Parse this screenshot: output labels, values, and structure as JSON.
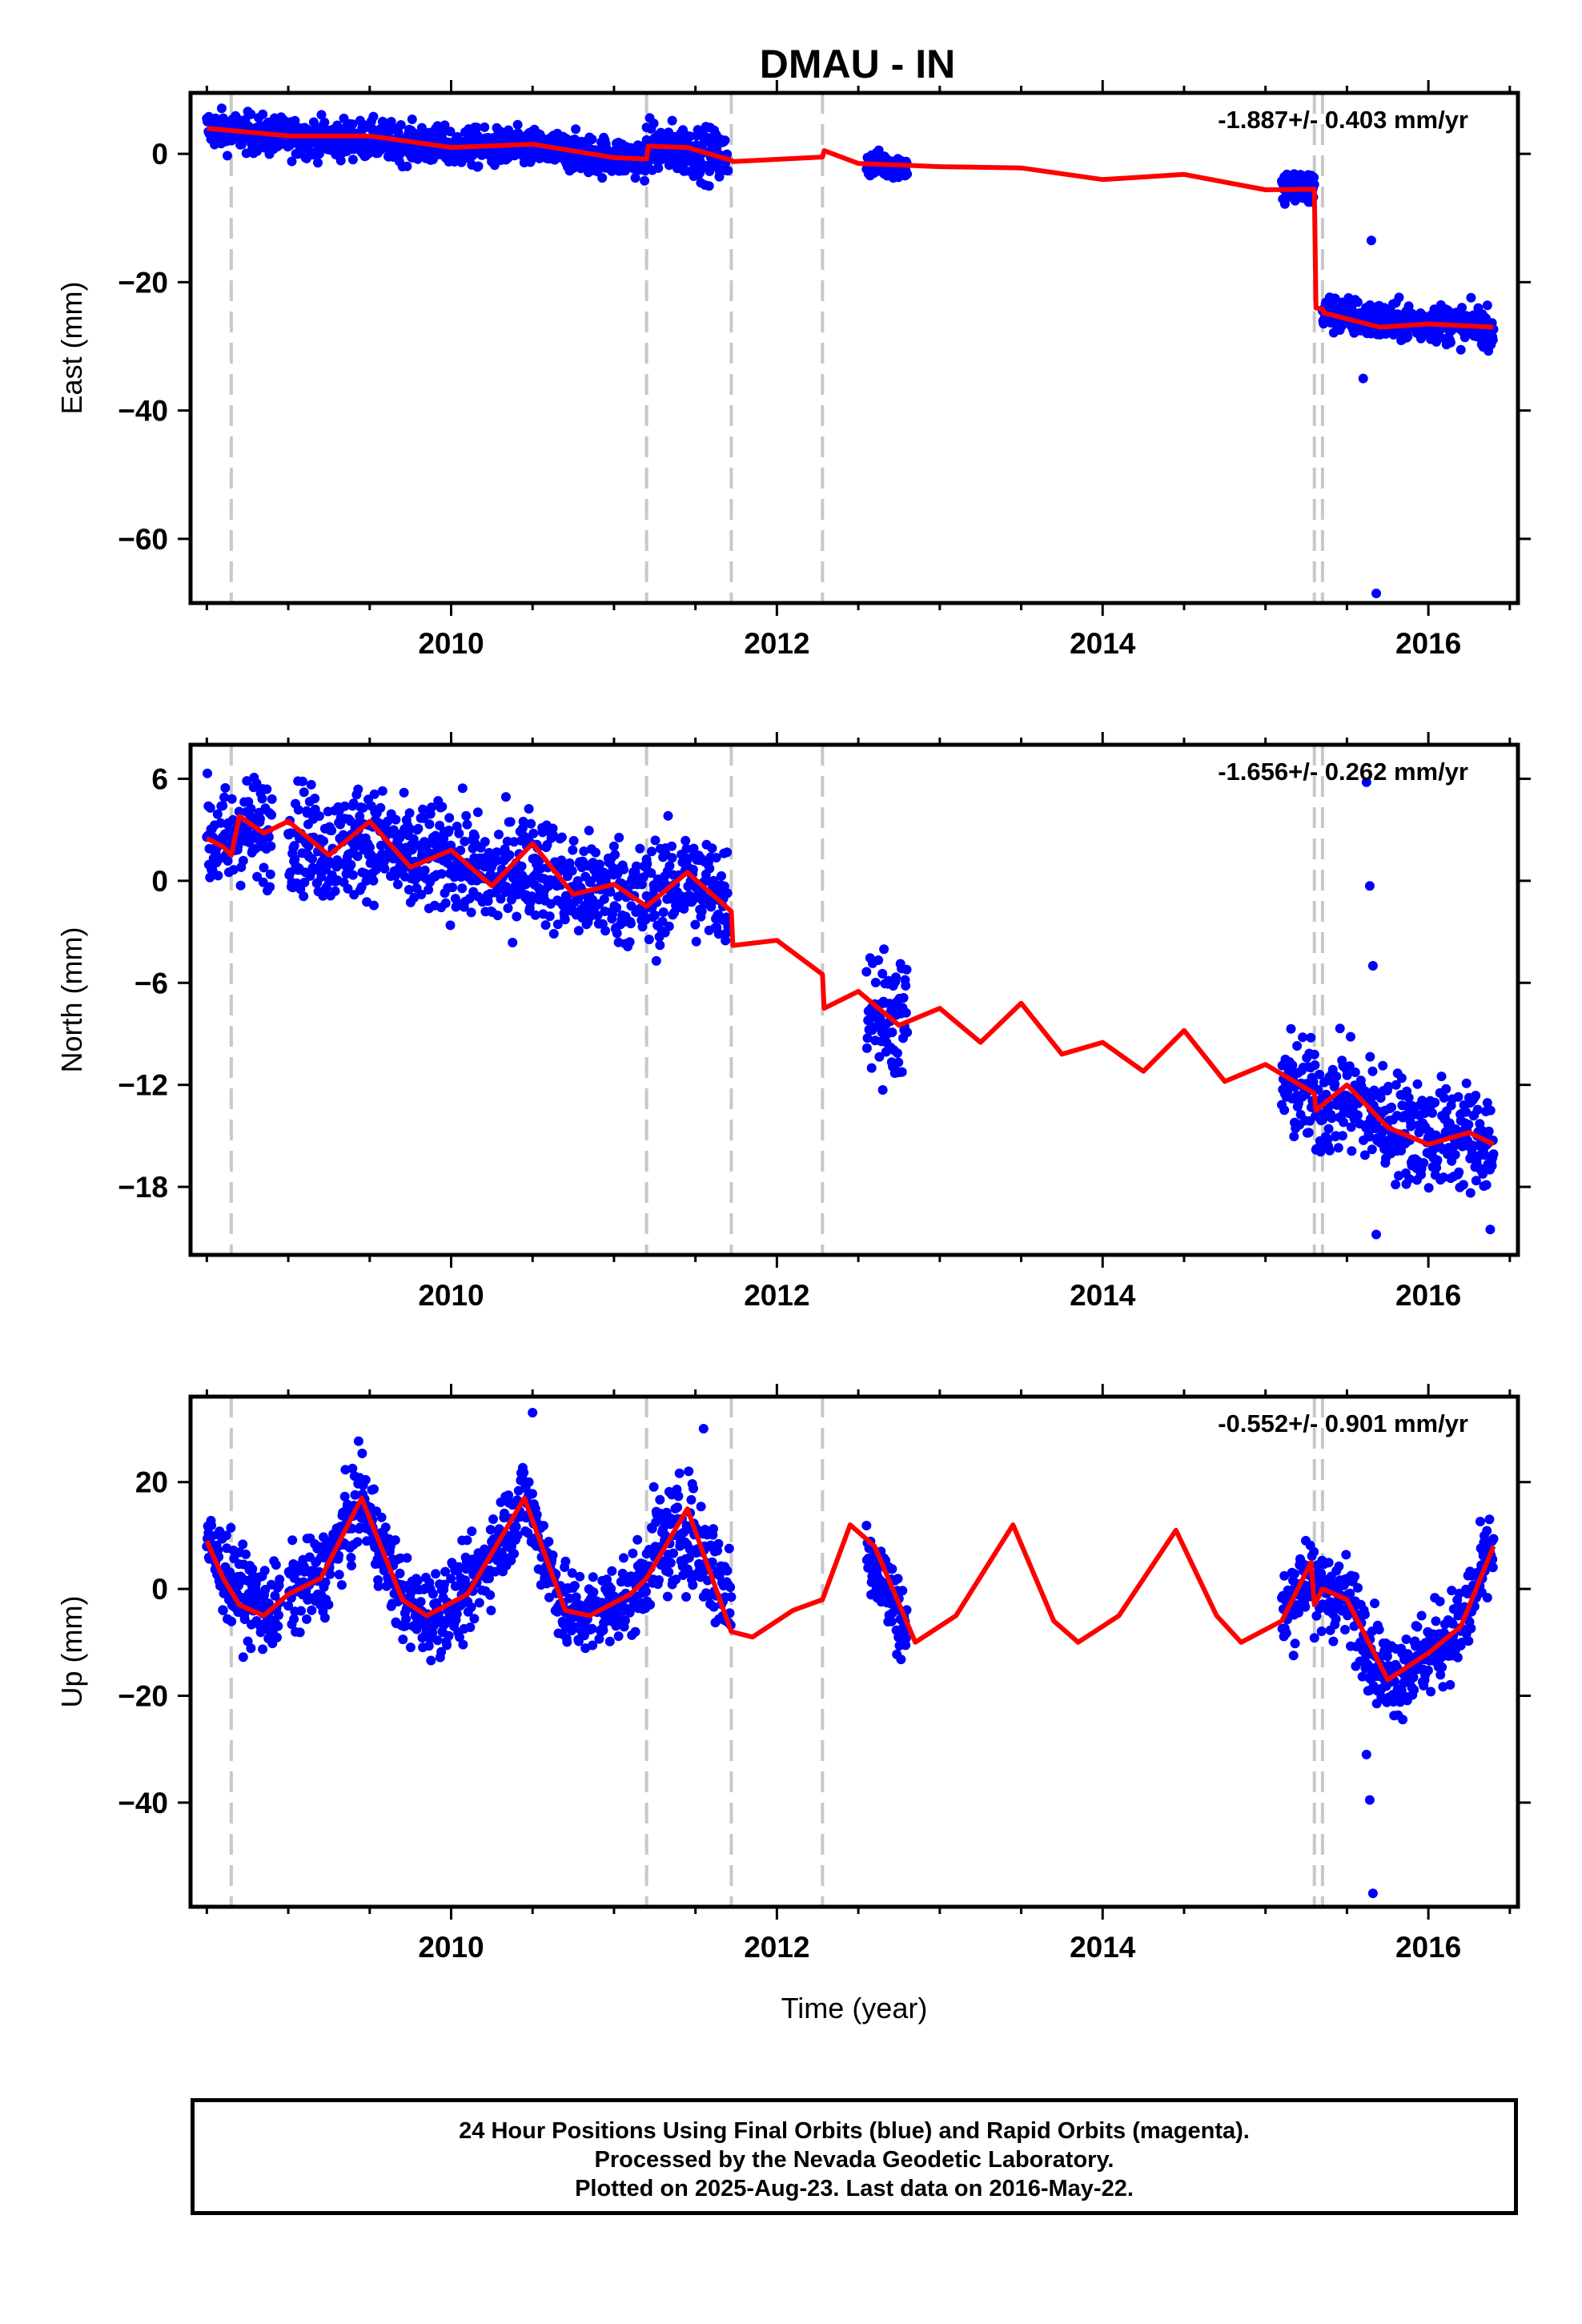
{
  "title": "DMAU - IN",
  "xlabel": "Time (year)",
  "colors": {
    "points": "#0000ff",
    "model": "#ff0000",
    "offsets": "#c8c8c8",
    "frame": "#000000"
  },
  "caption": [
    "24 Hour Positions Using Final Orbits (blue) and Rapid Orbits (magenta).",
    "Processed by the Nevada Geodetic Laboratory.",
    "Plotted on 2025-Aug-23. Last data on 2016-May-22."
  ],
  "chart_data": [
    {
      "type": "scatter",
      "component": "East",
      "ylabel": "East (mm)",
      "xlim": [
        2008.4,
        2016.55
      ],
      "ylim": [
        -70,
        9.5
      ],
      "xticks": [
        2010,
        2012,
        2014,
        2016
      ],
      "yticks": [
        0,
        -20,
        -40,
        -60
      ],
      "rate_label": "-1.887+/- 0.403 mm/yr",
      "offsets": [
        2008.65,
        2011.2,
        2011.72,
        2012.28,
        2015.3,
        2015.35
      ],
      "data_segments": [
        {
          "x": [
            2008.5,
            2008.9
          ],
          "model": [
            4.0,
            2.5
          ],
          "scatter": 1.5
        },
        {
          "x": [
            2008.9,
            2011.2
          ],
          "model": [
            2.5,
            -0.7
          ],
          "scatter": 1.5
        },
        {
          "x": [
            2011.2,
            2011.7
          ],
          "model": [
            1.0,
            -0.5
          ],
          "scatter": 2.0
        },
        {
          "x": [
            2012.55,
            2012.8
          ],
          "model": [
            -1.5,
            -2.0
          ],
          "scatter": 1.0
        },
        {
          "x": [
            2015.1,
            2015.3
          ],
          "model": [
            -5.0,
            -5.5
          ],
          "scatter": 1.5
        },
        {
          "x": [
            2015.35,
            2016.4
          ],
          "model": [
            -24.5,
            -27.0
          ],
          "scatter": 1.5
        }
      ],
      "model": {
        "x": [
          2008.5,
          2009.0,
          2009.5,
          2010.0,
          2010.5,
          2011.0,
          2011.2,
          2011.21,
          2011.45,
          2011.72,
          2011.73,
          2012.28,
          2012.29,
          2012.5,
          2013.0,
          2013.5,
          2014.0,
          2014.5,
          2015.0,
          2015.3,
          2015.31,
          2015.35,
          2015.36,
          2015.7,
          2016.0,
          2016.4
        ],
        "y": [
          4.0,
          2.8,
          2.8,
          1.0,
          1.5,
          -0.6,
          -0.8,
          1.2,
          1.0,
          -1.0,
          -1.2,
          -0.5,
          0.5,
          -1.5,
          -2.0,
          -2.2,
          -4.0,
          -3.2,
          -5.6,
          -5.5,
          -24.0,
          -24.2,
          -24.8,
          -27.0,
          -26.5,
          -27.0
        ]
      },
      "outliers": [
        {
          "x": 2015.65,
          "y": -13.5
        },
        {
          "x": 2015.6,
          "y": -35.0
        },
        {
          "x": 2015.68,
          "y": -68.5
        }
      ]
    },
    {
      "type": "scatter",
      "component": "North",
      "ylabel": "North (mm)",
      "xlim": [
        2008.4,
        2016.55
      ],
      "ylim": [
        -22,
        8
      ],
      "xticks": [
        2010,
        2012,
        2014,
        2016
      ],
      "yticks": [
        6,
        0,
        -6,
        -12,
        -18
      ],
      "rate_label": "-1.656+/- 0.262 mm/yr",
      "offsets": [
        2008.65,
        2011.2,
        2011.72,
        2012.28,
        2015.3,
        2015.35
      ],
      "data_segments": [
        {
          "x": [
            2008.5,
            2008.9
          ],
          "model": [
            2.5,
            2.8
          ],
          "scatter": 1.6
        },
        {
          "x": [
            2009.0,
            2011.2
          ],
          "model": [
            2.5,
            -1.0
          ],
          "scatter": 1.6
        },
        {
          "x": [
            2011.2,
            2011.7
          ],
          "model": [
            -0.5,
            -0.5
          ],
          "scatter": 1.6
        },
        {
          "x": [
            2012.55,
            2012.8
          ],
          "model": [
            -7.0,
            -8.0
          ],
          "scatter": 1.8
        },
        {
          "x": [
            2015.1,
            2016.4
          ],
          "model": [
            -12.5,
            -15.5
          ],
          "scatter": 1.6
        }
      ],
      "model": {
        "x": [
          2008.5,
          2008.6,
          2008.65,
          2008.7,
          2008.85,
          2009.0,
          2009.25,
          2009.5,
          2009.75,
          2010.0,
          2010.25,
          2010.5,
          2010.75,
          2011.0,
          2011.2,
          2011.45,
          2011.72,
          2011.73,
          2012.0,
          2012.28,
          2012.29,
          2012.5,
          2012.75,
          2013.0,
          2013.25,
          2013.5,
          2013.75,
          2014.0,
          2014.25,
          2014.5,
          2014.75,
          2015.0,
          2015.3,
          2015.31,
          2015.5,
          2015.75,
          2016.0,
          2016.25,
          2016.4
        ],
        "y": [
          2.5,
          2.0,
          1.5,
          3.8,
          2.8,
          3.5,
          1.5,
          3.5,
          0.8,
          1.8,
          -0.3,
          2.2,
          -0.8,
          -0.2,
          -1.5,
          0.5,
          -1.8,
          -3.8,
          -3.5,
          -5.5,
          -7.5,
          -6.5,
          -8.5,
          -7.5,
          -9.5,
          -7.2,
          -10.2,
          -9.5,
          -11.2,
          -8.8,
          -11.8,
          -10.8,
          -12.5,
          -13.5,
          -12.0,
          -14.5,
          -15.5,
          -14.8,
          -15.5
        ]
      },
      "outliers": [
        {
          "x": 2015.62,
          "y": 5.8
        },
        {
          "x": 2015.64,
          "y": -0.3
        },
        {
          "x": 2015.66,
          "y": -5.0
        },
        {
          "x": 2015.68,
          "y": -20.8
        },
        {
          "x": 2016.38,
          "y": -20.5
        },
        {
          "x": 2012.65,
          "y": -12.3
        }
      ]
    },
    {
      "type": "scatter",
      "component": "Up",
      "ylabel": "Up (mm)",
      "xlim": [
        2008.4,
        2016.55
      ],
      "ylim": [
        -59.5,
        36
      ],
      "xticks": [
        2010,
        2012,
        2014,
        2016
      ],
      "yticks": [
        20,
        0,
        -20,
        -40
      ],
      "rate_label": "-0.552+/- 0.901 mm/yr",
      "offsets": [
        2008.65,
        2011.2,
        2011.72,
        2012.28,
        2015.3,
        2015.35
      ],
      "data_segments": [
        {
          "x": [
            2008.5,
            2008.95
          ],
          "model": [
            8.0,
            -5.0
          ],
          "scatter": 4.0
        },
        {
          "x": [
            2009.0,
            2011.2
          ],
          "model": [
            0.0,
            0.0
          ],
          "scatter": 4.0,
          "seasonal": true
        },
        {
          "x": [
            2011.2,
            2011.72
          ],
          "model": [
            10.0,
            5.0
          ],
          "scatter": 5.0
        },
        {
          "x": [
            2012.55,
            2012.8
          ],
          "model": [
            5.0,
            -9.0
          ],
          "scatter": 4.0
        },
        {
          "x": [
            2015.1,
            2016.4
          ],
          "model": [
            0.0,
            5.0
          ],
          "scatter": 4.0,
          "seasonal": true
        }
      ],
      "model": {
        "x": [
          2008.5,
          2008.6,
          2008.7,
          2008.85,
          2009.0,
          2009.2,
          2009.45,
          2009.7,
          2009.85,
          2010.1,
          2010.45,
          2010.7,
          2010.85,
          2011.1,
          2011.2,
          2011.45,
          2011.72,
          2011.85,
          2012.1,
          2012.28,
          2012.45,
          2012.6,
          2012.85,
          2013.1,
          2013.45,
          2013.7,
          2013.85,
          2014.1,
          2014.45,
          2014.7,
          2014.85,
          2015.1,
          2015.28,
          2015.3,
          2015.35,
          2015.5,
          2015.75,
          2016.0,
          2016.2,
          2016.4
        ],
        "y": [
          9.0,
          2.0,
          -3.0,
          -5.0,
          -1.0,
          2.0,
          17.0,
          -2.0,
          -5.0,
          -1.0,
          17.0,
          -4.0,
          -5.0,
          -1.0,
          2.0,
          15.0,
          -8.0,
          -9.0,
          -4.0,
          -2.0,
          12.0,
          8.0,
          -10.0,
          -5.0,
          12.0,
          -6.0,
          -10.0,
          -5.0,
          11.0,
          -5.0,
          -10.0,
          -6.0,
          5.0,
          -3.0,
          0.0,
          -2.0,
          -17.0,
          -12.0,
          -7.0,
          8.0
        ]
      },
      "outliers": [
        {
          "x": 2015.62,
          "y": -31.0
        },
        {
          "x": 2015.64,
          "y": -39.5
        },
        {
          "x": 2015.66,
          "y": -57.0
        },
        {
          "x": 2010.5,
          "y": 33.0
        },
        {
          "x": 2011.55,
          "y": 30.0
        }
      ]
    }
  ]
}
